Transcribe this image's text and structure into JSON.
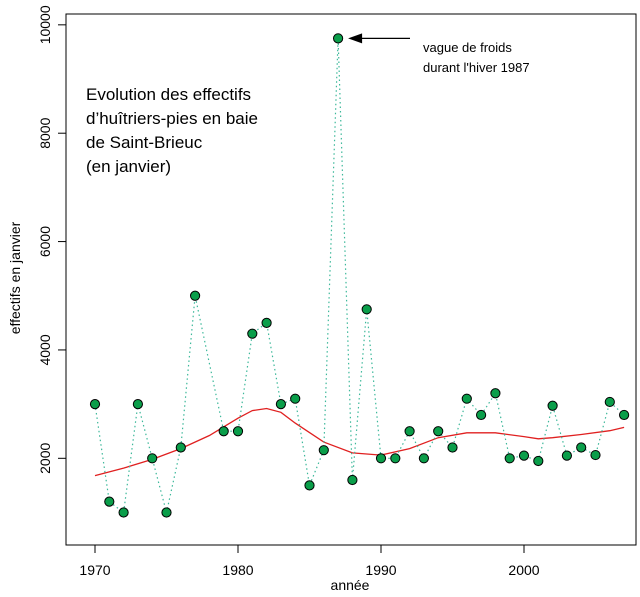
{
  "chart_data": {
    "type": "scatter",
    "title_lines": [
      "Evolution des effectifs",
      "d’huîtriers-pies en baie",
      "de Saint-Brieuc",
      "(en janvier)"
    ],
    "xlabel": "année",
    "ylabel": "effectifs en janvier",
    "xlim": [
      1969,
      2008
    ],
    "ylim": [
      400,
      10200
    ],
    "x_ticks": [
      1970,
      1980,
      1990,
      2000
    ],
    "y_ticks": [
      2000,
      4000,
      6000,
      8000,
      10000
    ],
    "grid": false,
    "colors": {
      "points": "#0a9e4a",
      "dotted_line": "#3cb89a",
      "trend": "#e02020",
      "annotation_arrow": "#000000"
    },
    "observed": {
      "x": [
        1970,
        1971,
        1972,
        1973,
        1974,
        1975,
        1976,
        1977,
        1979,
        1980,
        1981,
        1982,
        1983,
        1984,
        1985,
        1986,
        1987,
        1988,
        1989,
        1990,
        1991,
        1992,
        1993,
        1994,
        1995,
        1996,
        1997,
        1998,
        1999,
        2000,
        2001,
        2002,
        2003,
        2004,
        2005,
        2006,
        2007
      ],
      "y": [
        3000,
        1200,
        1000,
        3000,
        2000,
        1000,
        2200,
        5000,
        2500,
        2500,
        4300,
        4500,
        3000,
        3100,
        1500,
        2150,
        9750,
        1600,
        4750,
        2000,
        2000,
        2500,
        2000,
        2500,
        2200,
        3100,
        2800,
        3200,
        2000,
        2050,
        1950,
        2970,
        2050,
        2200,
        2060,
        3040,
        2800
      ]
    },
    "trend": {
      "x": [
        1970,
        1972,
        1974,
        1976,
        1978,
        1980,
        1981,
        1982,
        1983,
        1984,
        1986,
        1988,
        1990,
        1992,
        1994,
        1996,
        1998,
        2000,
        2001,
        2002,
        2004,
        2006,
        2007
      ],
      "y": [
        1680,
        1820,
        1980,
        2180,
        2420,
        2740,
        2880,
        2920,
        2850,
        2650,
        2300,
        2100,
        2060,
        2180,
        2380,
        2470,
        2470,
        2400,
        2360,
        2380,
        2440,
        2510,
        2570
      ]
    },
    "annotation": {
      "lines": [
        "vague de froids",
        "durant l'hiver 1987"
      ],
      "target_x": 1987,
      "target_y": 9750
    }
  }
}
